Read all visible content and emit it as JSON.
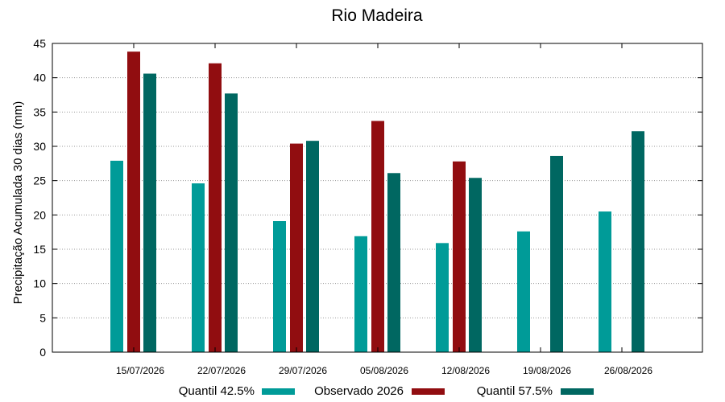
{
  "chart_data": {
    "type": "bar",
    "title": "Rio Madeira",
    "xlabel": "",
    "ylabel": "Precipitação Acumulada 30 dias (mm)",
    "ylim": [
      0,
      45
    ],
    "yticks": [
      0,
      5,
      10,
      15,
      20,
      25,
      30,
      35,
      40,
      45
    ],
    "grid": true,
    "legend_position": "bottom",
    "categories": [
      "15/07/2026",
      "22/07/2026",
      "29/07/2026",
      "05/08/2026",
      "12/08/2026",
      "19/08/2026",
      "26/08/2026"
    ],
    "series": [
      {
        "name": "Quantil 42.5%",
        "color": "#009b98",
        "values": [
          27.9,
          24.6,
          19.1,
          16.9,
          15.9,
          17.6,
          20.5
        ]
      },
      {
        "name": "Observado 2026",
        "color": "#910d10",
        "values": [
          43.8,
          42.1,
          30.4,
          33.7,
          27.8,
          null,
          null
        ]
      },
      {
        "name": "Quantil 57.5%",
        "color": "#006761",
        "values": [
          40.6,
          37.7,
          30.8,
          26.1,
          25.4,
          28.6,
          32.2
        ]
      }
    ]
  }
}
